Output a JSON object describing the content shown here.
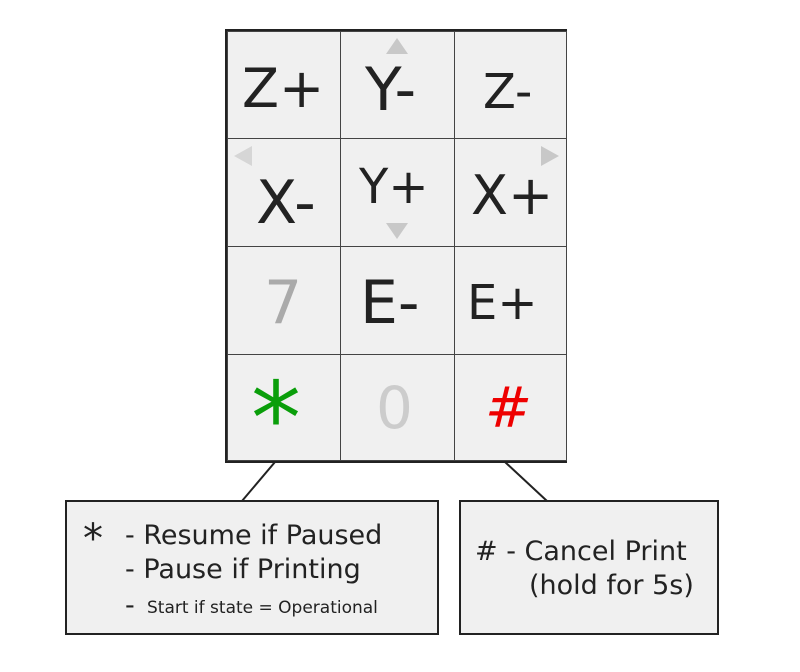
{
  "keys": {
    "z_plus": "Z+",
    "y_minus": "Y-",
    "z_minus": "Z-",
    "x_minus": "X-",
    "y_plus": "Y+",
    "x_plus": "X+",
    "seven": "7",
    "e_minus": "E-",
    "e_plus": "E+",
    "star": "*",
    "zero": "0",
    "hash": "#"
  },
  "key_colors": {
    "default": "#222222",
    "star": "#0a9e0a",
    "hash": "#ee0000",
    "disabled": "#aaaaaa",
    "faint": "#cccccc"
  },
  "arrow_icons": [
    "arrow-up-icon",
    "arrow-down-icon",
    "arrow-left-icon",
    "arrow-right-icon"
  ],
  "star_note": {
    "symbol": "*",
    "line1": "- Resume if Paused",
    "line2": "- Pause if Printing",
    "line3_dash": "-",
    "line3": "Start if state = Operational"
  },
  "hash_note": {
    "line1": "# - Cancel Print",
    "line2": "(hold for 5s)"
  }
}
